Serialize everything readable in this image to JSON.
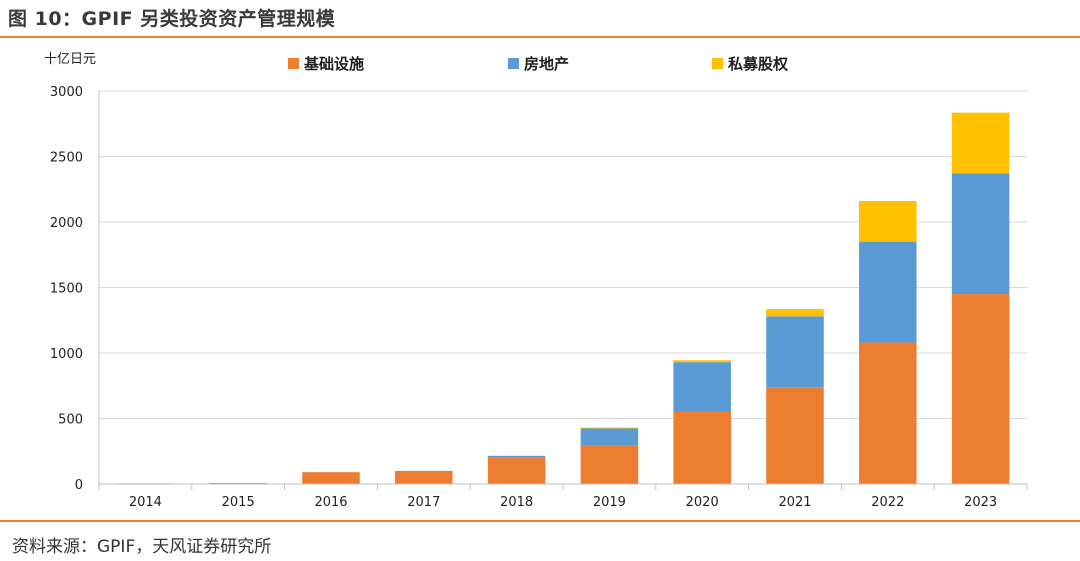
{
  "figure": {
    "title": "图 10：GPIF 另类投资资产管理规模",
    "source": "资料来源：GPIF，天风证券研究所"
  },
  "chart_data": {
    "type": "bar",
    "stacked": true,
    "unit_label": "十亿日元",
    "categories": [
      "2014",
      "2015",
      "2016",
      "2017",
      "2018",
      "2019",
      "2020",
      "2021",
      "2022",
      "2023"
    ],
    "series": [
      {
        "name": "基础设施",
        "color": "#ed7d31",
        "values": [
          5,
          8,
          90,
          100,
          200,
          295,
          550,
          735,
          1080,
          1450
        ]
      },
      {
        "name": "房地产",
        "color": "#5b9bd5",
        "values": [
          0,
          0,
          0,
          0,
          15,
          130,
          380,
          545,
          770,
          920
        ]
      },
      {
        "name": "私募股权",
        "color": "#ffc000",
        "values": [
          0,
          0,
          0,
          0,
          0,
          5,
          15,
          55,
          310,
          465
        ]
      }
    ],
    "ylim": [
      0,
      3000
    ],
    "yticks": [
      0,
      500,
      1000,
      1500,
      2000,
      2500,
      3000
    ],
    "grid": true,
    "legend_position": "top"
  }
}
